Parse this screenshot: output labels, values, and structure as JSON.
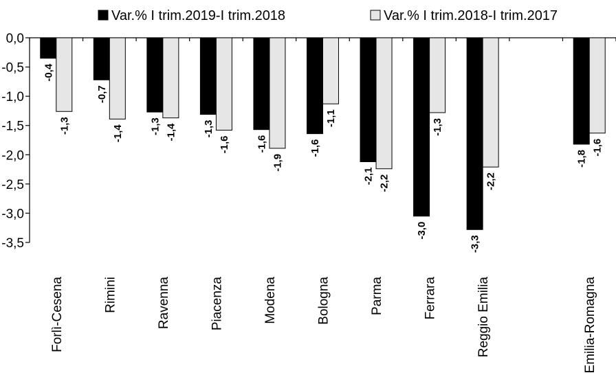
{
  "chart_data": {
    "type": "bar",
    "categories": [
      "Forlì-Cesena",
      "Rimini",
      "Ravenna",
      "Piacenza",
      "Modena",
      "Bologna",
      "Parma",
      "Ferrara",
      "Reggio Emilia",
      "",
      "Emilia-Romagna"
    ],
    "series": [
      {
        "name": "Var.% I trim.2019-I trim.2018",
        "color": "#000000",
        "values": [
          -0.35,
          -0.72,
          -1.27,
          -1.31,
          -1.57,
          -1.64,
          -2.12,
          -3.05,
          -3.28,
          null,
          -1.82
        ],
        "labels": [
          "-0,4",
          "-0,7",
          "-1,3",
          "-1,3",
          "-1,6",
          "-1,6",
          "-2,1",
          "-3,0",
          "-3,3",
          "",
          "-1,8"
        ]
      },
      {
        "name": "Var.% I trim.2018-I trim.2017",
        "color": "#e6e6e6",
        "values": [
          -1.26,
          -1.39,
          -1.37,
          -1.58,
          -1.89,
          -1.13,
          -2.24,
          -1.28,
          -2.21,
          null,
          -1.63
        ],
        "labels": [
          "-1,3",
          "-1,4",
          "-1,4",
          "-1,6",
          "-1,9",
          "-1,1",
          "-2,2",
          "-1,3",
          "-2,2",
          "",
          "-1,6"
        ]
      }
    ],
    "yticks": [
      "0,0",
      "-0,5",
      "-1,0",
      "-1,5",
      "-2,0",
      "-2,5",
      "-3,0",
      "-3,5"
    ],
    "ylim": [
      -3.5,
      0
    ],
    "legend": "top",
    "grid": false,
    "xlabel": "",
    "ylabel": ""
  }
}
